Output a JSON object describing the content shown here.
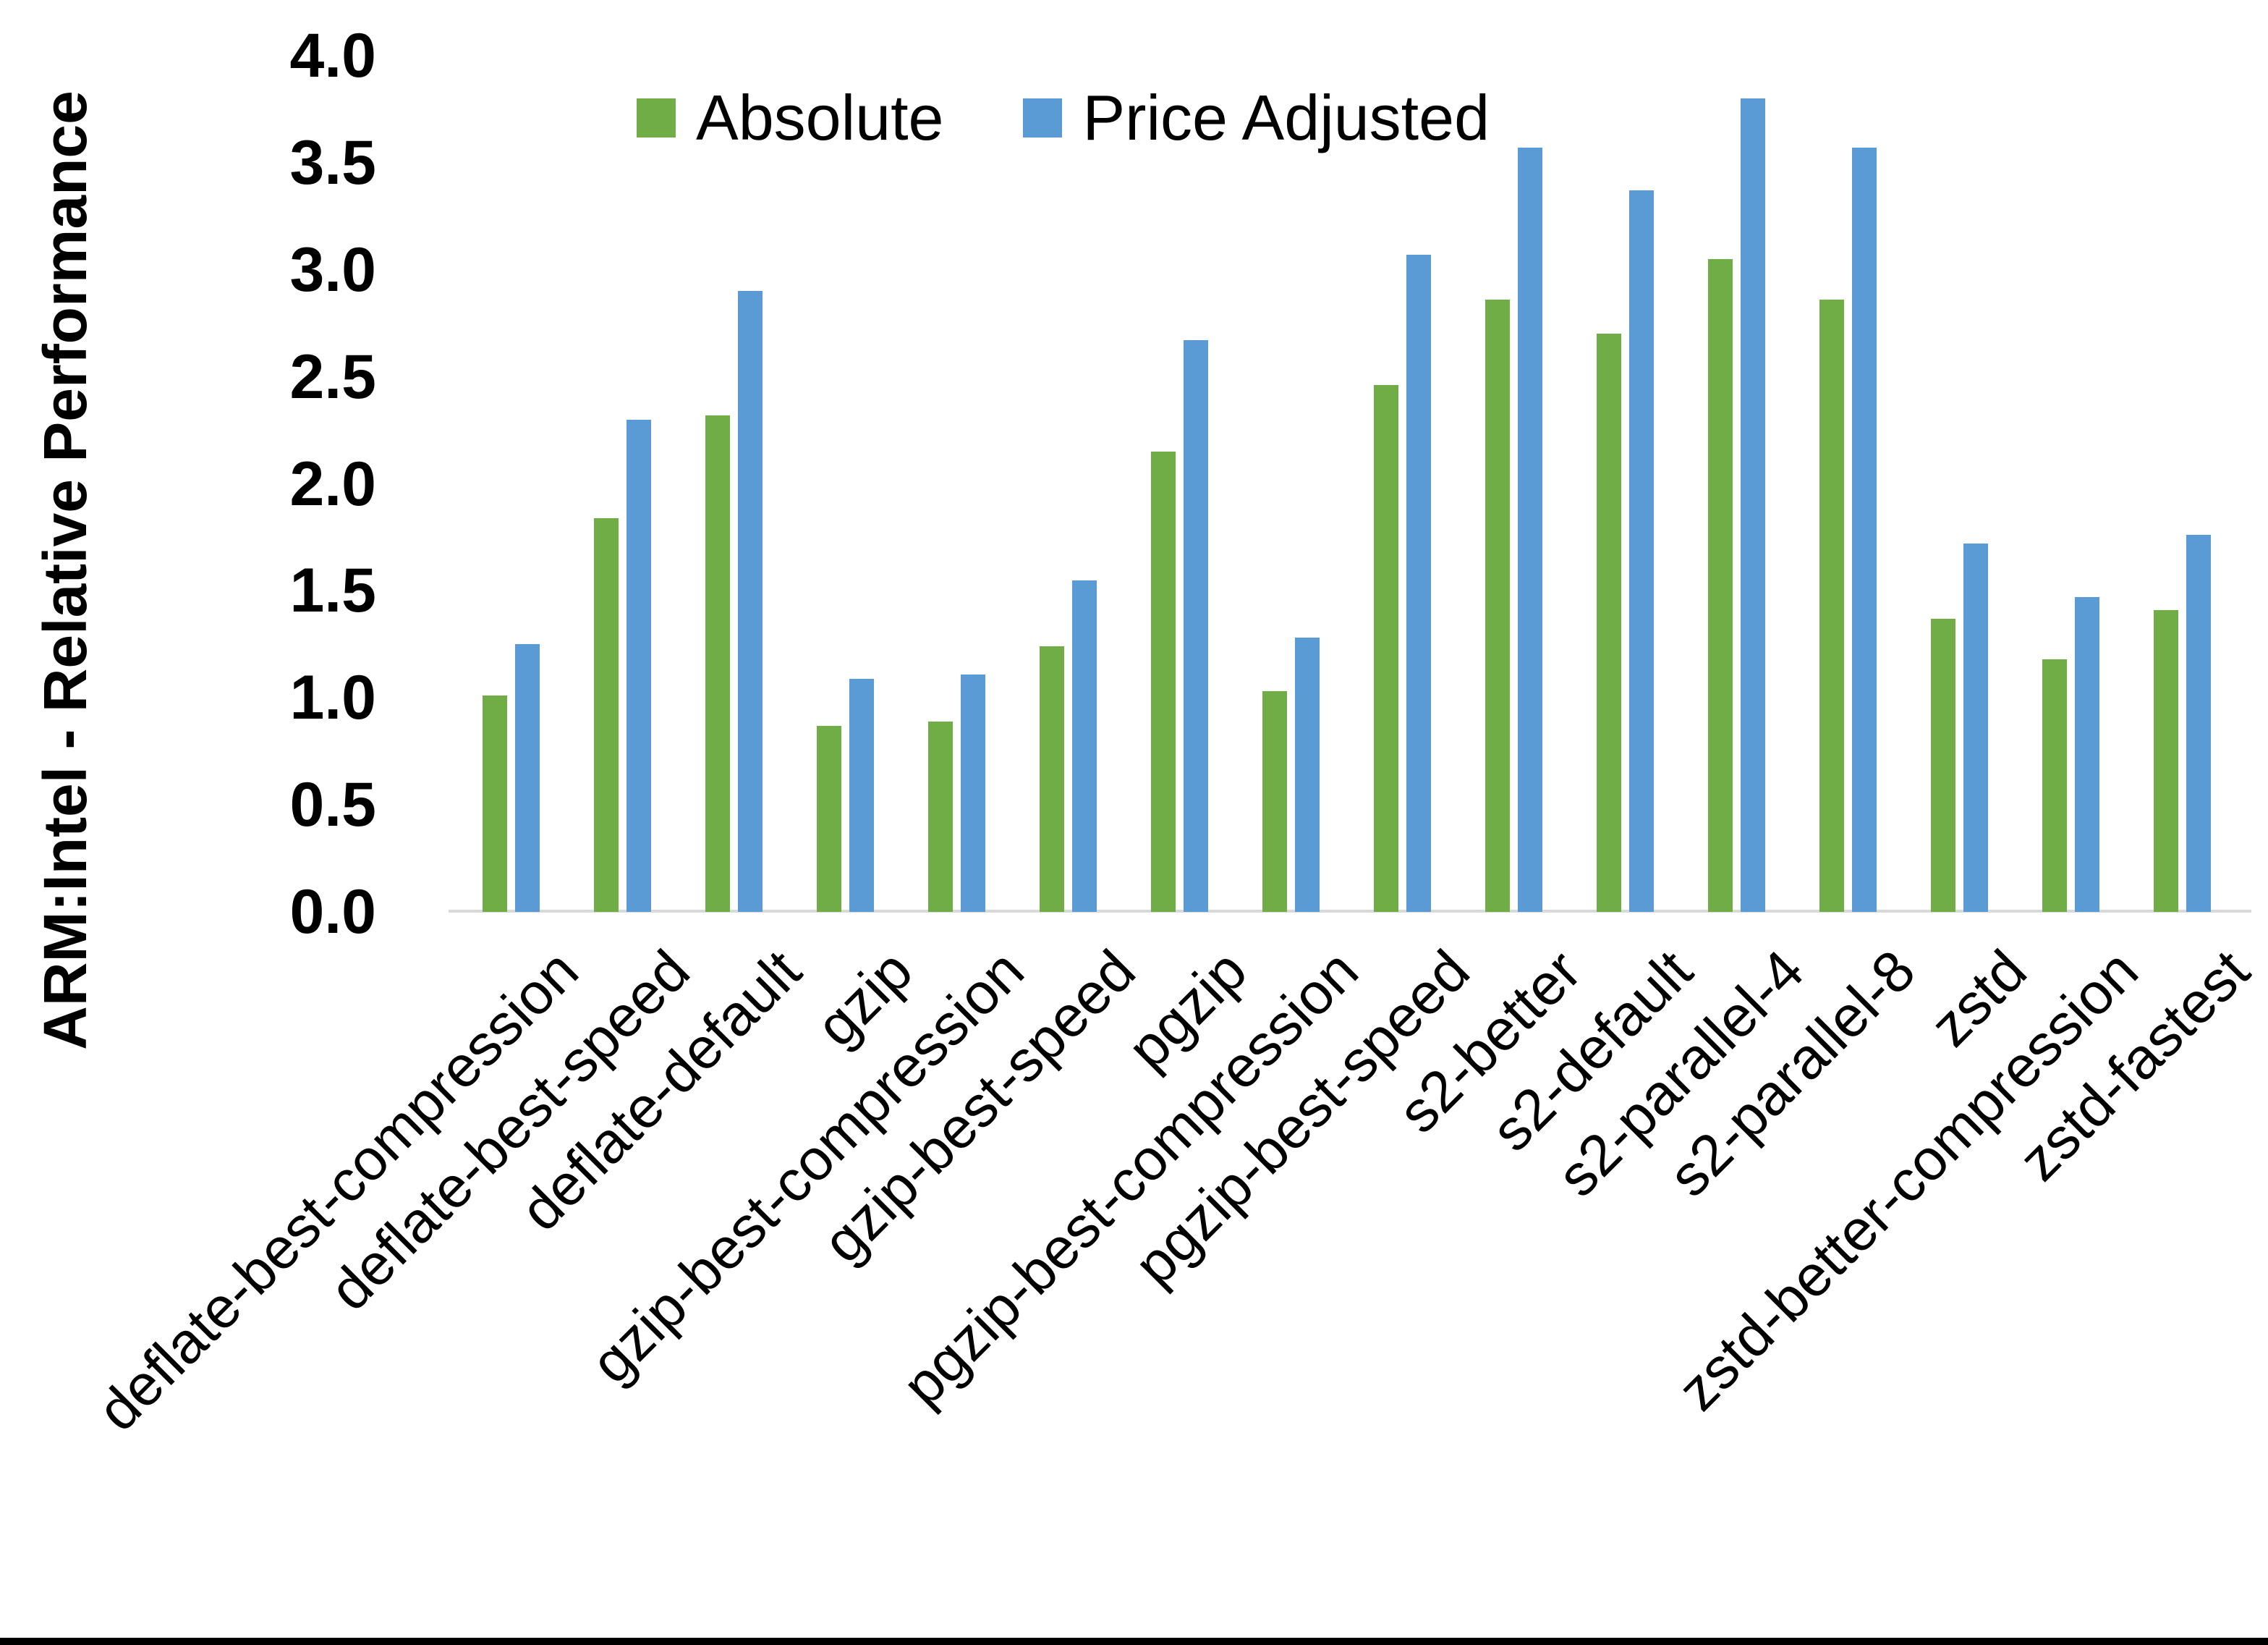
{
  "chart_data": {
    "type": "bar",
    "title": "",
    "ylabel": "ARM:Intel - Relative Performance",
    "xlabel": "",
    "ylim": [
      0.0,
      4.0
    ],
    "ytick_step": 0.5,
    "ytick_labels": [
      "0.0",
      "0.5",
      "1.0",
      "1.5",
      "2.0",
      "2.5",
      "3.0",
      "3.5",
      "4.0"
    ],
    "grid": false,
    "legend_position": "top-center",
    "axis_line_color": "#d9d9d9",
    "bottom_border_color": "#000000",
    "categories": [
      "deflate-best-compression",
      "deflate-best-speed",
      "deflate-default",
      "gzip",
      "gzip-best-compression",
      "gzip-best-speed",
      "pgzip",
      "pgzip-best-compression",
      "pgzip-best-speed",
      "s2-better",
      "s2-default",
      "s2-parallel-4",
      "s2-parallel-8",
      "zstd",
      "zstd-better-compression",
      "zstd-fastest"
    ],
    "series": [
      {
        "name": "Absolute",
        "color": "#70AD47",
        "values": [
          1.01,
          1.84,
          2.32,
          0.87,
          0.89,
          1.24,
          2.15,
          1.03,
          2.46,
          2.86,
          2.7,
          3.05,
          2.86,
          1.37,
          1.18,
          1.41
        ]
      },
      {
        "name": "Price Adjusted",
        "color": "#5B9BD5",
        "values": [
          1.25,
          2.3,
          2.9,
          1.09,
          1.11,
          1.55,
          2.67,
          1.28,
          3.07,
          3.57,
          3.37,
          3.8,
          3.57,
          1.72,
          1.47,
          1.76
        ]
      }
    ]
  }
}
